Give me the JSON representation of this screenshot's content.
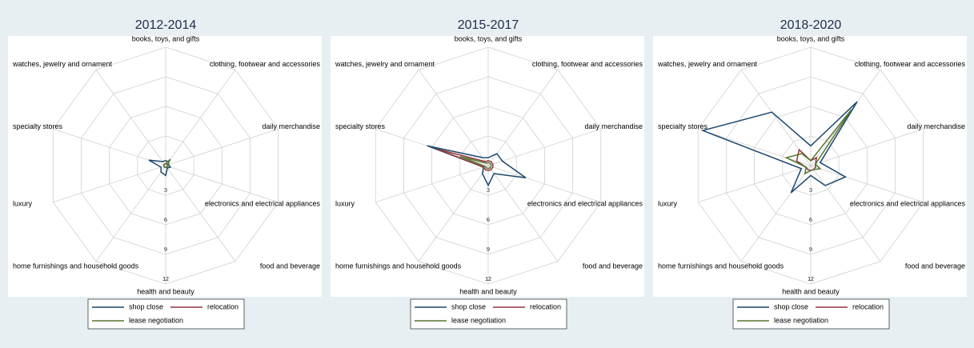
{
  "chart_data": [
    {
      "type": "radar",
      "title": "2012-2014",
      "categories": [
        "books, toys, and gifts",
        "clothing, footwear and accessories",
        "daily merchandise",
        "electronics and electrical appliances",
        "food and beverage",
        "health and beauty",
        "home furnishings and household goods",
        "luxury",
        "specialty stores",
        "watches, jewelry and ornament"
      ],
      "ylim": [
        0,
        12
      ],
      "yticks": [
        3,
        6,
        9,
        12
      ],
      "series": [
        {
          "name": "shop close",
          "color": "#1a476f",
          "values": [
            0.5,
            0.5,
            0.3,
            0.5,
            0.3,
            1,
            0.8,
            0.5,
            1.8,
            0.5
          ]
        },
        {
          "name": "relocation",
          "color": "#90353b",
          "values": [
            0.2,
            0.2,
            0.2,
            0.2,
            0.2,
            0.2,
            0.2,
            0.2,
            0.2,
            0.2
          ]
        },
        {
          "name": "lease negotiation",
          "color": "#55752f",
          "values": [
            0.2,
            0.8,
            0.2,
            0.2,
            0.2,
            0.2,
            0.2,
            0.2,
            0.2,
            0.2
          ]
        }
      ]
    },
    {
      "type": "radar",
      "title": "2015-2017",
      "categories": [
        "books, toys, and gifts",
        "clothing, footwear and accessories",
        "daily merchandise",
        "electronics and electrical appliances",
        "food and beverage",
        "health and beauty",
        "home furnishings and household goods",
        "luxury",
        "specialty stores",
        "watches, jewelry and ornament"
      ],
      "ylim": [
        0,
        12
      ],
      "yticks": [
        3,
        6,
        9,
        12
      ],
      "series": [
        {
          "name": "shop close",
          "color": "#1a476f",
          "values": [
            0.8,
            1.5,
            1.5,
            4,
            1,
            2,
            1,
            0.5,
            6.5,
            1
          ]
        },
        {
          "name": "relocation",
          "color": "#90353b",
          "values": [
            0.5,
            0.5,
            0.5,
            0.5,
            0.5,
            0.5,
            0.5,
            0.5,
            5.5,
            0.5
          ]
        },
        {
          "name": "lease negotiation",
          "color": "#55752f",
          "values": [
            0.3,
            0.3,
            0.3,
            0.3,
            0.3,
            0.3,
            0.3,
            0.3,
            3,
            0.3
          ]
        }
      ]
    },
    {
      "type": "radar",
      "title": "2018-2020",
      "categories": [
        "books, toys, and gifts",
        "clothing, footwear and accessories",
        "daily merchandise",
        "electronics and electrical appliances",
        "food and beverage",
        "health and beauty",
        "home furnishings and household goods",
        "luxury",
        "specialty stores",
        "watches, jewelry and ornament"
      ],
      "ylim": [
        0,
        12
      ],
      "yticks": [
        3,
        6,
        9,
        12
      ],
      "series": [
        {
          "name": "shop close",
          "color": "#1a476f",
          "values": [
            2,
            8,
            1,
            3.7,
            2.5,
            1,
            3.4,
            1,
            11.5,
            6.7
          ]
        },
        {
          "name": "relocation",
          "color": "#90353b",
          "values": [
            0.5,
            1,
            0.5,
            0.5,
            0.5,
            0.5,
            0.5,
            0.5,
            1.5,
            2
          ]
        },
        {
          "name": "lease negotiation",
          "color": "#55752f",
          "values": [
            0.5,
            7,
            0.5,
            1,
            0.5,
            0.5,
            1,
            0.5,
            2.6,
            1.5
          ]
        }
      ]
    }
  ]
}
